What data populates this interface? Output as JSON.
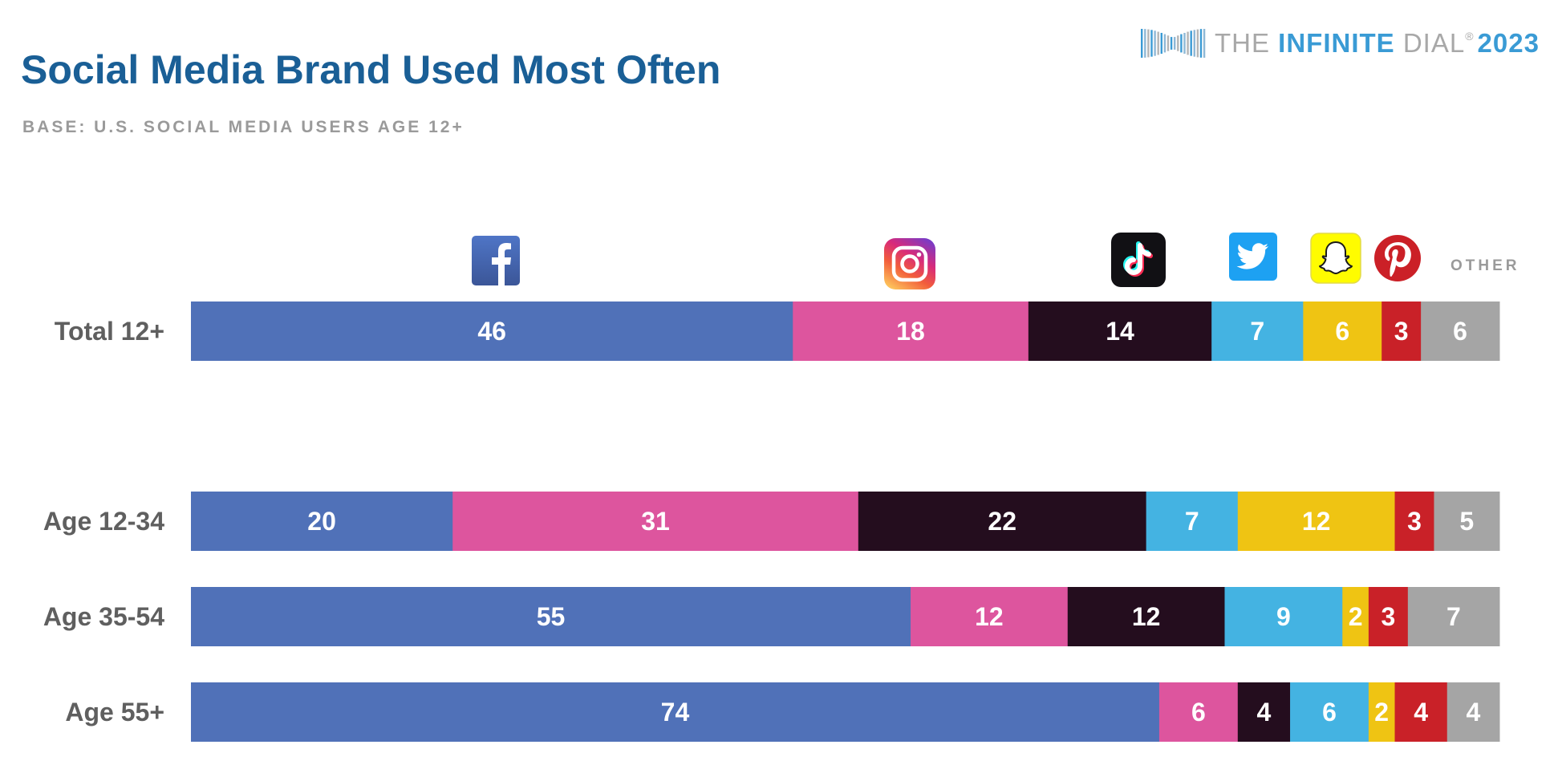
{
  "header": {
    "title": "Social Media Brand Used Most Often",
    "subtitle": "BASE: U.S. SOCIAL MEDIA USERS AGE 12+"
  },
  "logo": {
    "the": "THE",
    "infinite": "INFINITE",
    "dial": "DIAL",
    "registered": "®",
    "year": "2023"
  },
  "brands": [
    {
      "name": "Facebook",
      "icon": "facebook-icon",
      "color": "#5071b8"
    },
    {
      "name": "Instagram",
      "icon": "instagram-icon",
      "color": "#dd559e"
    },
    {
      "name": "TikTok",
      "icon": "tiktok-icon",
      "color": "#240d1e"
    },
    {
      "name": "Twitter",
      "icon": "twitter-icon",
      "color": "#44b3e2"
    },
    {
      "name": "Snapchat",
      "icon": "snapchat-icon",
      "color": "#efc413"
    },
    {
      "name": "Pinterest",
      "icon": "pinterest-icon",
      "color": "#c92128"
    },
    {
      "name": "Other",
      "icon": null,
      "color": "#a5a5a5"
    }
  ],
  "other_label": "OTHER",
  "chart_data": {
    "type": "bar",
    "orientation": "horizontal",
    "stacked": true,
    "title": "Social Media Brand Used Most Often",
    "subtitle": "BASE: U.S. SOCIAL MEDIA USERS AGE 12+",
    "xlabel": "",
    "ylabel": "",
    "unit": "%",
    "categories": [
      "Total 12+",
      "Age 12-34",
      "Age 35-54",
      "Age 55+"
    ],
    "series": [
      {
        "name": "Facebook",
        "values": [
          46,
          20,
          55,
          74
        ]
      },
      {
        "name": "Instagram",
        "values": [
          18,
          31,
          12,
          6
        ]
      },
      {
        "name": "TikTok",
        "values": [
          14,
          22,
          12,
          4
        ]
      },
      {
        "name": "Twitter",
        "values": [
          7,
          7,
          9,
          6
        ]
      },
      {
        "name": "Snapchat",
        "values": [
          6,
          12,
          2,
          2
        ]
      },
      {
        "name": "Pinterest",
        "values": [
          3,
          3,
          3,
          4
        ]
      },
      {
        "name": "Other",
        "values": [
          6,
          5,
          7,
          4
        ]
      }
    ],
    "legend": "icons above top bar",
    "grid": false
  }
}
